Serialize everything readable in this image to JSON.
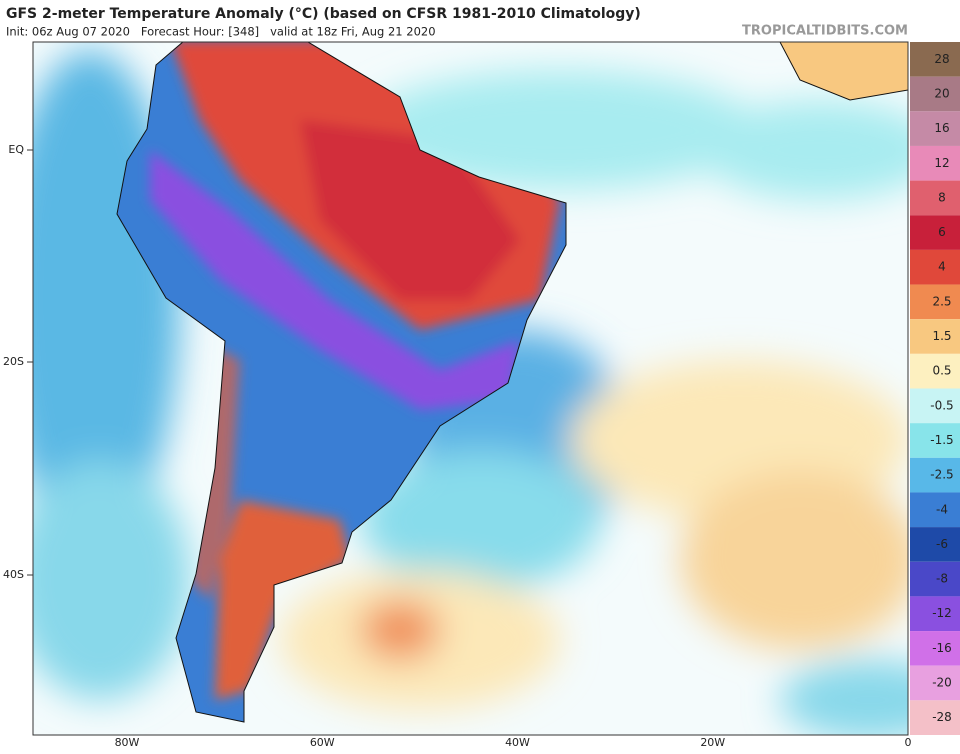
{
  "header": {
    "title": "GFS 2-meter Temperature Anomaly (°C) (based on CFSR 1981-2010 Climatology)",
    "subtitle": "Init: 06z Aug 07 2020   Forecast Hour: [348]   valid at 18z Fri, Aug 21 2020",
    "credit": "TROPICALTIDBITS.COM"
  },
  "map": {
    "lat_labels": [
      "EQ",
      "20S",
      "40S"
    ],
    "lon_labels": [
      "80W",
      "60W",
      "40W",
      "20W",
      "0"
    ]
  },
  "colorbar": {
    "labels": [
      28,
      20,
      16,
      12,
      8,
      6,
      4,
      2.5,
      1.5,
      0.5,
      -0.5,
      -1.5,
      -2.5,
      -4,
      -6,
      -8,
      -12,
      -16,
      -20,
      -28
    ],
    "colors": [
      "#8a6a50",
      "#a87a86",
      "#c58aa6",
      "#e88ab8",
      "#e0606e",
      "#c8203a",
      "#e0483a",
      "#f08a50",
      "#f8c880",
      "#fdf0c0",
      "#c8f4f4",
      "#88e4ea",
      "#58b8e8",
      "#3a7ed4",
      "#1e4aa8",
      "#4a48c8",
      "#8a50e0",
      "#d070e8",
      "#e8a0e0",
      "#f4c0c8"
    ]
  }
}
